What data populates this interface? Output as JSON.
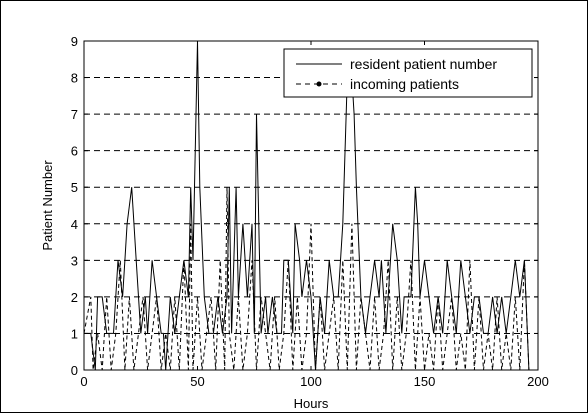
{
  "chart_data": {
    "type": "line",
    "title": "",
    "xlabel": "Hours",
    "ylabel": "Patient Number",
    "xlim": [
      0,
      200
    ],
    "ylim": [
      0,
      9
    ],
    "xticks": [
      0,
      50,
      100,
      150,
      200
    ],
    "yticks": [
      0,
      1,
      2,
      3,
      4,
      5,
      6,
      7,
      8,
      9
    ],
    "grid": "horizontal dashed",
    "legend_position": "top-right",
    "series": [
      {
        "name": "resident patient number",
        "style": "solid",
        "color": "#000000",
        "x": [
          0,
          3,
          5,
          6,
          8,
          10,
          13,
          15,
          17,
          18,
          19,
          21,
          23,
          25,
          27,
          28,
          30,
          32,
          34,
          35,
          36,
          38,
          40,
          42,
          44,
          46,
          47,
          48,
          50,
          51,
          53,
          55,
          57,
          59,
          61,
          63,
          64,
          65,
          67,
          68,
          70,
          72,
          74,
          75,
          76,
          78,
          80,
          81,
          83,
          85,
          87,
          88,
          90,
          92,
          93,
          95,
          96,
          98,
          100,
          102,
          104,
          106,
          108,
          110,
          112,
          114,
          116,
          118,
          119,
          120,
          122,
          124,
          126,
          128,
          130,
          131,
          133,
          134,
          136,
          138,
          140,
          141,
          142,
          144,
          146,
          147,
          148,
          150,
          152,
          154,
          156,
          158,
          160,
          162,
          164,
          166,
          168,
          170,
          172,
          174,
          176,
          178,
          180,
          182,
          184,
          186,
          188,
          190,
          192,
          194,
          196
        ],
        "values": [
          1,
          1,
          0,
          2,
          2,
          1,
          1,
          3,
          2,
          3,
          4,
          5,
          3,
          1,
          2,
          1,
          3,
          2,
          1,
          1,
          0,
          2,
          1,
          2,
          3,
          2,
          5,
          3,
          9,
          5,
          2,
          1,
          1,
          2,
          1,
          2,
          5,
          1,
          5,
          2,
          4,
          2,
          4,
          1,
          7,
          1,
          2,
          1,
          2,
          1,
          1,
          3,
          3,
          1,
          4,
          3,
          2,
          3,
          2,
          0,
          2,
          1,
          3,
          2,
          2,
          4,
          8,
          8,
          7,
          5,
          2,
          1,
          2,
          3,
          2,
          3,
          1,
          2,
          4,
          3,
          1,
          2,
          2,
          2,
          5,
          4,
          2,
          3,
          2,
          1,
          2,
          1,
          3,
          2,
          1,
          3,
          2,
          1,
          2,
          2,
          1,
          1,
          2,
          1,
          2,
          1,
          2,
          3,
          2,
          3,
          0
        ],
        "x_full_note": null
      },
      {
        "name": "incoming patients",
        "style": "dashed",
        "color": "#000000",
        "x": [
          0,
          3,
          4,
          6,
          8,
          10,
          12,
          14,
          16,
          18,
          20,
          22,
          24,
          26,
          28,
          30,
          32,
          34,
          36,
          38,
          40,
          42,
          44,
          46,
          47,
          48,
          50,
          52,
          54,
          56,
          58,
          60,
          62,
          63,
          64,
          66,
          68,
          70,
          72,
          74,
          76,
          78,
          80,
          82,
          84,
          86,
          88,
          90,
          92,
          94,
          96,
          98,
          100,
          102,
          104,
          106,
          108,
          110,
          112,
          114,
          116,
          118,
          120,
          122,
          124,
          126,
          128,
          130,
          132,
          134,
          136,
          138,
          140,
          142,
          144,
          146,
          148,
          150,
          152,
          154,
          156,
          158,
          160,
          162,
          164,
          166,
          168,
          170,
          172,
          174,
          176,
          178,
          180,
          182,
          184,
          186,
          188,
          190,
          192,
          194,
          196
        ],
        "values": [
          1,
          2,
          0,
          1,
          0,
          2,
          0,
          1,
          3,
          0,
          2,
          0,
          1,
          2,
          0,
          1,
          2,
          0,
          1,
          0,
          2,
          0,
          3,
          0,
          4,
          0,
          2,
          0,
          1,
          2,
          0,
          3,
          0,
          5,
          1,
          0,
          2,
          0,
          1,
          3,
          0,
          2,
          1,
          0,
          2,
          0,
          1,
          3,
          0,
          2,
          0,
          1,
          4,
          0,
          2,
          0,
          1,
          2,
          0,
          3,
          0,
          4,
          0,
          2,
          1,
          0,
          2,
          0,
          1,
          3,
          0,
          2,
          0,
          1,
          3,
          0,
          2,
          0,
          1,
          0,
          2,
          0,
          1,
          2,
          0,
          1,
          0,
          3,
          0,
          2,
          0,
          1,
          0,
          2,
          0,
          1,
          0,
          2,
          0,
          3,
          0
        ]
      }
    ]
  }
}
